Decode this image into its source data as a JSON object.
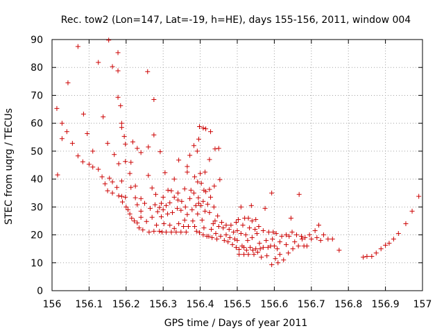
{
  "chart_data": {
    "type": "scatter",
    "title": "Rec. tow2 (Lon=147, Lat=-19, h=HE), days 155-156, 2011, window 004",
    "xlabel": "GPS time / Days of year 2011",
    "ylabel": "STEC from uqrg / TECUs",
    "xlim": [
      156,
      157
    ],
    "ylim": [
      0,
      90
    ],
    "xticks": [
      156,
      156.1,
      156.2,
      156.3,
      156.4,
      156.5,
      156.6,
      156.7,
      156.8,
      156.9,
      157
    ],
    "xtick_labels": [
      "156",
      "156.1",
      "156.2",
      "156.3",
      "156.4",
      "156.5",
      "156.6",
      "156.7",
      "156.8",
      "156.9",
      "157"
    ],
    "yticks": [
      0,
      10,
      20,
      30,
      40,
      50,
      60,
      70,
      80,
      90
    ],
    "ytick_labels": [
      "0",
      "10",
      "20",
      "30",
      "40",
      "50",
      "60",
      "70",
      "80",
      "90"
    ],
    "marker": "+",
    "color": "#cc0000",
    "grid": true,
    "series": [
      {
        "name": "STEC",
        "points": [
          [
            156.013,
            65.3
          ],
          [
            156.015,
            41.5
          ],
          [
            156.027,
            60.0
          ],
          [
            156.027,
            54.5
          ],
          [
            156.04,
            57.0
          ],
          [
            156.043,
            74.5
          ],
          [
            156.055,
            52.8
          ],
          [
            156.07,
            87.5
          ],
          [
            156.07,
            48.3
          ],
          [
            156.083,
            46.2
          ],
          [
            156.085,
            63.3
          ],
          [
            156.095,
            56.3
          ],
          [
            156.1,
            45.3
          ],
          [
            156.11,
            44.3
          ],
          [
            156.11,
            50.0
          ],
          [
            156.125,
            81.8
          ],
          [
            156.125,
            43.5
          ],
          [
            156.135,
            40.8
          ],
          [
            156.138,
            62.3
          ],
          [
            156.143,
            38.3
          ],
          [
            156.15,
            52.8
          ],
          [
            156.15,
            35.8
          ],
          [
            156.153,
            89.8
          ],
          [
            156.155,
            40.3
          ],
          [
            156.163,
            80.3
          ],
          [
            156.163,
            39.0
          ],
          [
            156.163,
            35.0
          ],
          [
            156.168,
            48.8
          ],
          [
            156.175,
            37.0
          ],
          [
            156.178,
            85.3
          ],
          [
            156.178,
            78.8
          ],
          [
            156.178,
            69.3
          ],
          [
            156.18,
            34.0
          ],
          [
            156.18,
            45.5
          ],
          [
            156.185,
            66.3
          ],
          [
            156.188,
            60.0
          ],
          [
            156.188,
            58.5
          ],
          [
            156.188,
            39.3
          ],
          [
            156.188,
            33.8
          ],
          [
            156.19,
            31.8
          ],
          [
            156.195,
            55.3
          ],
          [
            156.198,
            46.3
          ],
          [
            156.198,
            52.5
          ],
          [
            156.198,
            33.5
          ],
          [
            156.2,
            30.0
          ],
          [
            156.205,
            29.0
          ],
          [
            156.21,
            42.0
          ],
          [
            156.21,
            27.5
          ],
          [
            156.213,
            37.0
          ],
          [
            156.213,
            46.0
          ],
          [
            156.215,
            26.0
          ],
          [
            156.218,
            53.3
          ],
          [
            156.222,
            25.0
          ],
          [
            156.225,
            37.5
          ],
          [
            156.225,
            33.3
          ],
          [
            156.23,
            51.0
          ],
          [
            156.23,
            30.8
          ],
          [
            156.23,
            24.3
          ],
          [
            156.235,
            22.5
          ],
          [
            156.24,
            49.5
          ],
          [
            156.24,
            33.0
          ],
          [
            156.24,
            28.5
          ],
          [
            156.24,
            26.3
          ],
          [
            156.245,
            21.8
          ],
          [
            156.25,
            31.3
          ],
          [
            156.255,
            24.8
          ],
          [
            156.258,
            78.5
          ],
          [
            156.26,
            51.5
          ],
          [
            156.26,
            41.3
          ],
          [
            156.262,
            21.0
          ],
          [
            156.265,
            29.5
          ],
          [
            156.27,
            36.8
          ],
          [
            156.27,
            26.3
          ],
          [
            156.275,
            68.5
          ],
          [
            156.275,
            55.8
          ],
          [
            156.275,
            21.3
          ],
          [
            156.278,
            30.8
          ],
          [
            156.28,
            34.5
          ],
          [
            156.282,
            23.5
          ],
          [
            156.285,
            28.3
          ],
          [
            156.29,
            29.8
          ],
          [
            156.29,
            21.3
          ],
          [
            156.292,
            49.8
          ],
          [
            156.295,
            31.3
          ],
          [
            156.295,
            26.5
          ],
          [
            156.297,
            21.0
          ],
          [
            156.3,
            33.5
          ],
          [
            156.3,
            29.0
          ],
          [
            156.302,
            24.0
          ],
          [
            156.305,
            42.3
          ],
          [
            156.308,
            30.5
          ],
          [
            156.308,
            21.0
          ],
          [
            156.312,
            27.5
          ],
          [
            156.313,
            36.0
          ],
          [
            156.318,
            31.5
          ],
          [
            156.318,
            23.5
          ],
          [
            156.322,
            21.0
          ],
          [
            156.322,
            35.8
          ],
          [
            156.325,
            28.0
          ],
          [
            156.33,
            40.0
          ],
          [
            156.33,
            33.5
          ],
          [
            156.33,
            22.3
          ],
          [
            156.335,
            21.0
          ],
          [
            156.338,
            29.5
          ],
          [
            156.34,
            35.0
          ],
          [
            156.34,
            32.5
          ],
          [
            156.342,
            46.8
          ],
          [
            156.342,
            24.0
          ],
          [
            156.348,
            21.0
          ],
          [
            156.348,
            28.8
          ],
          [
            156.35,
            32.0
          ],
          [
            156.355,
            23.0
          ],
          [
            156.358,
            36.5
          ],
          [
            156.358,
            25.3
          ],
          [
            156.36,
            30.0
          ],
          [
            156.362,
            21.0
          ],
          [
            156.365,
            44.5
          ],
          [
            156.365,
            42.5
          ],
          [
            156.365,
            27.3
          ],
          [
            156.368,
            23.0
          ],
          [
            156.372,
            48.5
          ],
          [
            156.372,
            33.0
          ],
          [
            156.375,
            36.0
          ],
          [
            156.378,
            29.0
          ],
          [
            156.38,
            25.0
          ],
          [
            156.383,
            52.0
          ],
          [
            156.383,
            35.0
          ],
          [
            156.385,
            40.8
          ],
          [
            156.385,
            23.0
          ],
          [
            156.388,
            30.5
          ],
          [
            156.39,
            21.3
          ],
          [
            156.392,
            50.0
          ],
          [
            156.393,
            39.0
          ],
          [
            156.393,
            27.5
          ],
          [
            156.395,
            33.3
          ],
          [
            156.396,
            54.3
          ],
          [
            156.396,
            31.3
          ],
          [
            156.398,
            58.8
          ],
          [
            156.398,
            20.8
          ],
          [
            156.4,
            42.0
          ],
          [
            156.402,
            30.5
          ],
          [
            156.403,
            38.5
          ],
          [
            156.405,
            25.3
          ],
          [
            156.408,
            58.3
          ],
          [
            156.408,
            32.0
          ],
          [
            156.408,
            20.0
          ],
          [
            156.41,
            36.0
          ],
          [
            156.41,
            22.5
          ],
          [
            156.413,
            42.5
          ],
          [
            156.413,
            28.5
          ],
          [
            156.415,
            58.0
          ],
          [
            156.415,
            35.5
          ],
          [
            156.418,
            19.5
          ],
          [
            156.42,
            31.0
          ],
          [
            156.423,
            19.5
          ],
          [
            156.425,
            47.0
          ],
          [
            156.425,
            36.3
          ],
          [
            156.425,
            28.0
          ],
          [
            156.428,
            57.0
          ],
          [
            156.428,
            33.5
          ],
          [
            156.43,
            22.0
          ],
          [
            156.432,
            19.0
          ],
          [
            156.435,
            24.0
          ],
          [
            156.437,
            30.0
          ],
          [
            156.438,
            37.5
          ],
          [
            156.44,
            50.8
          ],
          [
            156.44,
            25.0
          ],
          [
            156.442,
            20.5
          ],
          [
            156.445,
            18.5
          ],
          [
            156.447,
            26.8
          ],
          [
            156.45,
            51.0
          ],
          [
            156.45,
            23.0
          ],
          [
            156.453,
            39.8
          ],
          [
            156.455,
            19.5
          ],
          [
            156.458,
            24.5
          ],
          [
            156.462,
            22.5
          ],
          [
            156.465,
            18.0
          ],
          [
            156.47,
            23.5
          ],
          [
            156.47,
            20.0
          ],
          [
            156.475,
            17.5
          ],
          [
            156.478,
            22.0
          ],
          [
            156.48,
            19.0
          ],
          [
            156.483,
            23.5
          ],
          [
            156.487,
            16.5
          ],
          [
            156.49,
            21.0
          ],
          [
            156.493,
            18.5
          ],
          [
            156.497,
            24.5
          ],
          [
            156.497,
            15.5
          ],
          [
            156.5,
            21.5
          ],
          [
            156.5,
            18.0
          ],
          [
            156.503,
            25.5
          ],
          [
            156.505,
            14.8
          ],
          [
            156.505,
            13.0
          ],
          [
            156.51,
            20.5
          ],
          [
            156.51,
            30.0
          ],
          [
            156.513,
            16.0
          ],
          [
            156.515,
            23.5
          ],
          [
            156.518,
            13.0
          ],
          [
            156.518,
            15.5
          ],
          [
            156.52,
            26.0
          ],
          [
            156.523,
            20.0
          ],
          [
            156.525,
            14.5
          ],
          [
            156.528,
            18.0
          ],
          [
            156.53,
            26.0
          ],
          [
            156.53,
            13.0
          ],
          [
            156.533,
            22.5
          ],
          [
            156.535,
            15.5
          ],
          [
            156.538,
            30.5
          ],
          [
            156.54,
            25.0
          ],
          [
            156.54,
            19.0
          ],
          [
            156.542,
            14.5
          ],
          [
            156.545,
            13.0
          ],
          [
            156.548,
            22.0
          ],
          [
            156.55,
            25.5
          ],
          [
            156.55,
            15.0
          ],
          [
            156.553,
            20.5
          ],
          [
            156.555,
            13.8
          ],
          [
            156.558,
            23.0
          ],
          [
            156.56,
            17.0
          ],
          [
            156.562,
            15.0
          ],
          [
            156.565,
            12.0
          ],
          [
            156.57,
            21.5
          ],
          [
            156.57,
            15.5
          ],
          [
            156.575,
            29.5
          ],
          [
            156.578,
            18.0
          ],
          [
            156.58,
            12.5
          ],
          [
            156.583,
            15.5
          ],
          [
            156.585,
            21.0
          ],
          [
            156.59,
            16.0
          ],
          [
            156.593,
            35.0
          ],
          [
            156.593,
            9.3
          ],
          [
            156.595,
            18.5
          ],
          [
            156.597,
            21.0
          ],
          [
            156.6,
            16.0
          ],
          [
            156.603,
            11.5
          ],
          [
            156.605,
            20.5
          ],
          [
            156.608,
            15.0
          ],
          [
            156.61,
            10.0
          ],
          [
            156.615,
            17.5
          ],
          [
            156.615,
            13.0
          ],
          [
            156.62,
            19.5
          ],
          [
            156.625,
            11.0
          ],
          [
            156.632,
            16.5
          ],
          [
            156.632,
            20.0
          ],
          [
            156.638,
            13.5
          ],
          [
            156.64,
            19.5
          ],
          [
            156.645,
            26.0
          ],
          [
            156.648,
            21.0
          ],
          [
            156.65,
            15.0
          ],
          [
            156.655,
            17.5
          ],
          [
            156.66,
            20.0
          ],
          [
            156.665,
            16.0
          ],
          [
            156.667,
            34.5
          ],
          [
            156.673,
            19.5
          ],
          [
            156.675,
            18.5
          ],
          [
            156.68,
            16.0
          ],
          [
            156.683,
            19.0
          ],
          [
            156.688,
            16.0
          ],
          [
            156.695,
            20.0
          ],
          [
            156.7,
            18.5
          ],
          [
            156.71,
            21.5
          ],
          [
            156.715,
            19.0
          ],
          [
            156.72,
            23.5
          ],
          [
            156.725,
            18.0
          ],
          [
            156.733,
            20.0
          ],
          [
            156.745,
            18.5
          ],
          [
            156.757,
            18.5
          ],
          [
            156.775,
            14.5
          ],
          [
            156.84,
            12.0
          ],
          [
            156.85,
            12.3
          ],
          [
            156.863,
            12.3
          ],
          [
            156.875,
            13.5
          ],
          [
            156.888,
            15.0
          ],
          [
            156.9,
            16.3
          ],
          [
            156.91,
            17.0
          ],
          [
            156.922,
            18.5
          ],
          [
            156.935,
            20.5
          ],
          [
            156.955,
            24.0
          ],
          [
            156.972,
            28.5
          ],
          [
            156.99,
            33.8
          ]
        ]
      }
    ]
  }
}
